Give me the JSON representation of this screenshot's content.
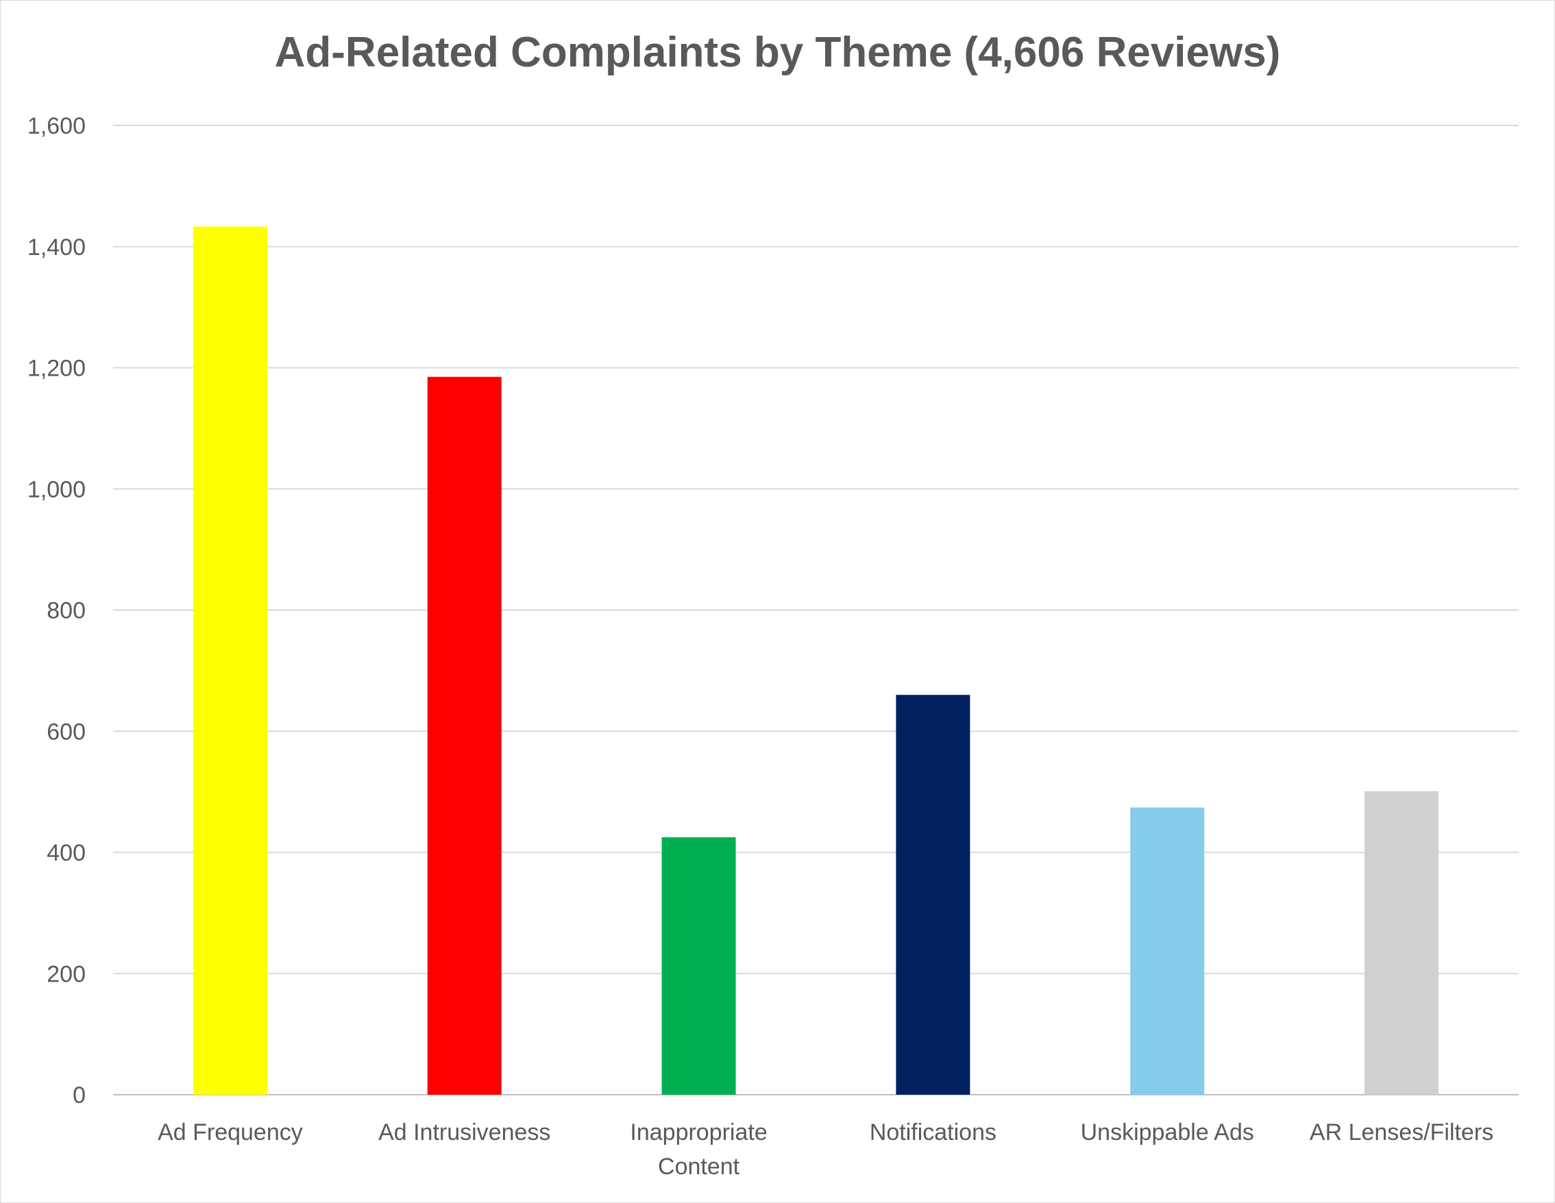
{
  "chart_data": {
    "type": "bar",
    "title": "Ad-Related Complaints by Theme (4,606 Reviews)",
    "categories": [
      [
        "Ad Frequency"
      ],
      [
        "Ad Intrusiveness"
      ],
      [
        "Inappropriate",
        "Content"
      ],
      [
        "Notifications"
      ],
      [
        "Unskippable Ads"
      ],
      [
        "AR Lenses/Filters"
      ]
    ],
    "values": [
      1433,
      1185,
      425,
      660,
      474,
      501
    ],
    "colors": [
      "#FFFF00",
      "#FF0000",
      "#00B050",
      "#002060",
      "#85CCEB",
      "#D0D0D0"
    ],
    "ylim": [
      0,
      1600
    ],
    "yticks": [
      0,
      200,
      400,
      600,
      800,
      1000,
      1200,
      1400,
      1600
    ],
    "ytick_labels": [
      "0",
      "200",
      "400",
      "600",
      "800",
      "1,000",
      "1,200",
      "1,400",
      "1,600"
    ],
    "grid": true,
    "legend": "none"
  }
}
